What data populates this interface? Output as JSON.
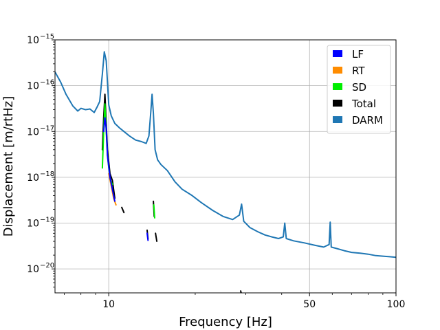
{
  "chart_data": {
    "type": "line",
    "title": "",
    "xlabel": "Frequency [Hz]",
    "ylabel": "Displacement [m/rtHz]",
    "xscale": "log",
    "yscale": "log",
    "xlim": [
      6.5,
      100
    ],
    "ylim": [
      3e-21,
      1e-15
    ],
    "grid": true,
    "legend_position": "top-right",
    "x_tick_labels": [
      {
        "value": 10,
        "label": "10"
      },
      {
        "value": 50,
        "label": "50"
      },
      {
        "value": 100,
        "label": "100"
      }
    ],
    "y_tick_labels": [
      {
        "value": 1e-15,
        "mantissa": "10",
        "exp": "−15"
      },
      {
        "value": 1e-16,
        "mantissa": "10",
        "exp": "−16"
      },
      {
        "value": 1e-17,
        "mantissa": "10",
        "exp": "−17"
      },
      {
        "value": 1e-18,
        "mantissa": "10",
        "exp": "−18"
      },
      {
        "value": 1e-19,
        "mantissa": "10",
        "exp": "−19"
      },
      {
        "value": 1e-20,
        "mantissa": "10",
        "exp": "−20"
      }
    ],
    "series": [
      {
        "name": "DARM",
        "color": "#1f77b4",
        "x": [
          6.5,
          6.8,
          7.1,
          7.5,
          7.8,
          8.0,
          8.3,
          8.6,
          8.9,
          9.1,
          9.3,
          9.5,
          9.65,
          9.8,
          9.9,
          10.0,
          10.2,
          10.5,
          10.9,
          11.3,
          11.8,
          12.4,
          13.0,
          13.5,
          13.8,
          14.0,
          14.15,
          14.3,
          14.5,
          14.8,
          15.2,
          16.0,
          17.0,
          18.0,
          19.5,
          21.0,
          23.0,
          25.0,
          27.0,
          28.5,
          29.0,
          29.5,
          31.0,
          33.0,
          35.0,
          37.0,
          39.0,
          40.5,
          41.0,
          41.5,
          44.0,
          48.0,
          52.0,
          56.0,
          58.5,
          59.0,
          59.5,
          62.0,
          66.0,
          70.0,
          75.0,
          80.0,
          85.0,
          90.0,
          95.0,
          100.0
        ],
        "y": [
          2e-16,
          1.2e-16,
          6.5e-17,
          3.6e-17,
          2.8e-17,
          3.2e-17,
          3e-17,
          3.1e-17,
          2.6e-17,
          3.4e-17,
          4.5e-17,
          1.8e-16,
          5.5e-16,
          3.5e-16,
          1.2e-16,
          3.8e-17,
          2.2e-17,
          1.5e-17,
          1.2e-17,
          1e-17,
          8e-18,
          6.5e-18,
          6e-18,
          5.5e-18,
          8e-18,
          2.5e-17,
          6.5e-17,
          2.5e-17,
          4e-18,
          2.4e-18,
          1.9e-18,
          1.4e-18,
          8e-19,
          5.5e-19,
          4e-19,
          2.8e-19,
          1.9e-19,
          1.4e-19,
          1.2e-19,
          1.5e-19,
          2.6e-19,
          1.1e-19,
          8e-20,
          6.5e-20,
          5.5e-20,
          5e-20,
          4.6e-20,
          5e-20,
          1e-19,
          4.6e-20,
          4.1e-20,
          3.7e-20,
          3.3e-20,
          3e-20,
          3.4e-20,
          1.05e-19,
          3e-20,
          2.8e-20,
          2.5e-20,
          2.3e-20,
          2.2e-20,
          2.1e-20,
          1.95e-20,
          1.9e-20,
          1.85e-20,
          1.8e-20
        ]
      },
      {
        "name": "Total",
        "color": "#000000",
        "segments": [
          {
            "x": [
              9.5,
              9.6,
              9.7,
              9.8,
              9.9,
              10.1,
              10.3,
              10.5
            ],
            "y": [
              4e-18,
              2e-17,
              6.5e-17,
              1.5e-17,
              4e-18,
              1.2e-18,
              8.5e-19,
              3.5e-19
            ]
          },
          {
            "x": [
              11.1,
              11.3
            ],
            "y": [
              2.2e-19,
              1.7e-19
            ]
          },
          {
            "x": [
              13.6,
              13.7
            ],
            "y": [
              7e-20,
              4.5e-20
            ]
          },
          {
            "x": [
              14.3,
              14.4
            ],
            "y": [
              3e-19,
              1.4e-19
            ]
          },
          {
            "x": [
              14.55,
              14.7
            ],
            "y": [
              6e-20,
              4e-20
            ]
          },
          {
            "x": [
              28.8,
              28.9
            ],
            "y": [
              3.3e-21,
              3e-21
            ]
          }
        ]
      },
      {
        "name": "SD",
        "color": "#00ee00",
        "segments": [
          {
            "x": [
              9.5,
              9.6,
              9.7,
              9.8,
              9.9,
              10.1,
              10.3
            ],
            "y": [
              1.6e-18,
              1e-17,
              4e-17,
              1e-17,
              3e-18,
              9e-19,
              7e-19
            ]
          },
          {
            "x": [
              14.35,
              14.45
            ],
            "y": [
              2.5e-19,
              1.3e-19
            ]
          }
        ]
      },
      {
        "name": "RT",
        "color": "#ff8c00",
        "segments": [
          {
            "x": [
              10.0,
              10.2,
              10.4,
              10.6
            ],
            "y": [
              1.2e-18,
              6.5e-19,
              3.5e-19,
              2.5e-19
            ]
          }
        ]
      },
      {
        "name": "LF",
        "color": "#0000ff",
        "segments": [
          {
            "x": [
              9.6,
              9.7,
              9.8,
              9.9,
              10.1,
              10.3,
              10.5
            ],
            "y": [
              1e-17,
              2e-17,
              1.2e-17,
              3e-18,
              1e-18,
              5.5e-19,
              3e-19
            ]
          },
          {
            "x": [
              13.6,
              13.7
            ],
            "y": [
              6e-20,
              4.2e-20
            ]
          }
        ]
      }
    ],
    "legend": [
      {
        "label": "LF",
        "color": "#0000ff"
      },
      {
        "label": "RT",
        "color": "#ff8c00"
      },
      {
        "label": "SD",
        "color": "#00ee00"
      },
      {
        "label": "Total",
        "color": "#000000"
      },
      {
        "label": "DARM",
        "color": "#1f77b4"
      }
    ]
  }
}
